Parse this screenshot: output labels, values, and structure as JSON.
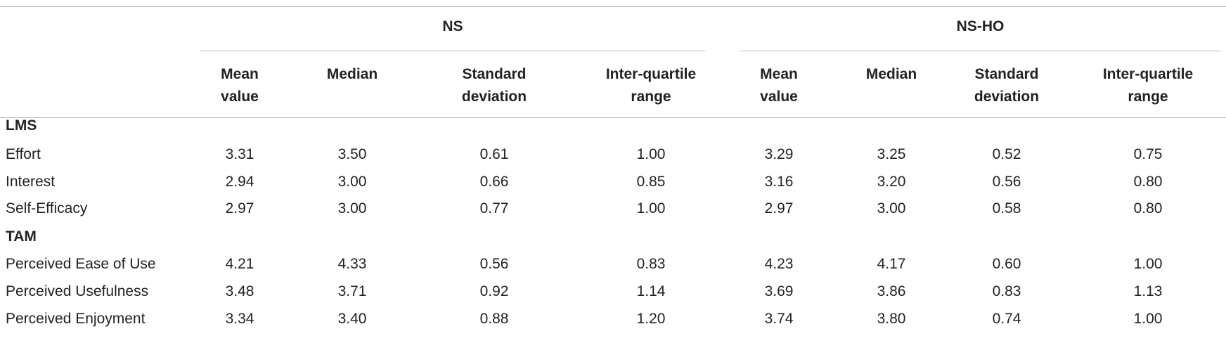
{
  "table": {
    "groups": [
      "NS",
      "NS-HO"
    ],
    "columns": [
      [
        "Mean",
        "value"
      ],
      [
        "Median",
        ""
      ],
      [
        "Standard",
        "deviation"
      ],
      [
        "Inter-quartile",
        "range"
      ],
      [
        "Mean",
        "value"
      ],
      [
        "Median",
        ""
      ],
      [
        "Standard",
        "deviation"
      ],
      [
        "Inter-quartile",
        "range"
      ]
    ],
    "sections": [
      {
        "name": "LMS",
        "rows": [
          {
            "label": "Effort",
            "values": [
              "3.31",
              "3.50",
              "0.61",
              "1.00",
              "3.29",
              "3.25",
              "0.52",
              "0.75"
            ]
          },
          {
            "label": "Interest",
            "values": [
              "2.94",
              "3.00",
              "0.66",
              "0.85",
              "3.16",
              "3.20",
              "0.56",
              "0.80"
            ]
          },
          {
            "label": "Self-Efficacy",
            "values": [
              "2.97",
              "3.00",
              "0.77",
              "1.00",
              "2.97",
              "3.00",
              "0.58",
              "0.80"
            ]
          }
        ]
      },
      {
        "name": "TAM",
        "rows": [
          {
            "label": "Perceived Ease of Use",
            "values": [
              "4.21",
              "4.33",
              "0.56",
              "0.83",
              "4.23",
              "4.17",
              "0.60",
              "1.00"
            ]
          },
          {
            "label": "Perceived Usefulness",
            "values": [
              "3.48",
              "3.71",
              "0.92",
              "1.14",
              "3.69",
              "3.86",
              "0.83",
              "1.13"
            ]
          },
          {
            "label": "Perceived Enjoyment",
            "values": [
              "3.34",
              "3.40",
              "0.88",
              "1.20",
              "3.74",
              "3.80",
              "0.74",
              "1.00"
            ]
          }
        ]
      }
    ]
  }
}
